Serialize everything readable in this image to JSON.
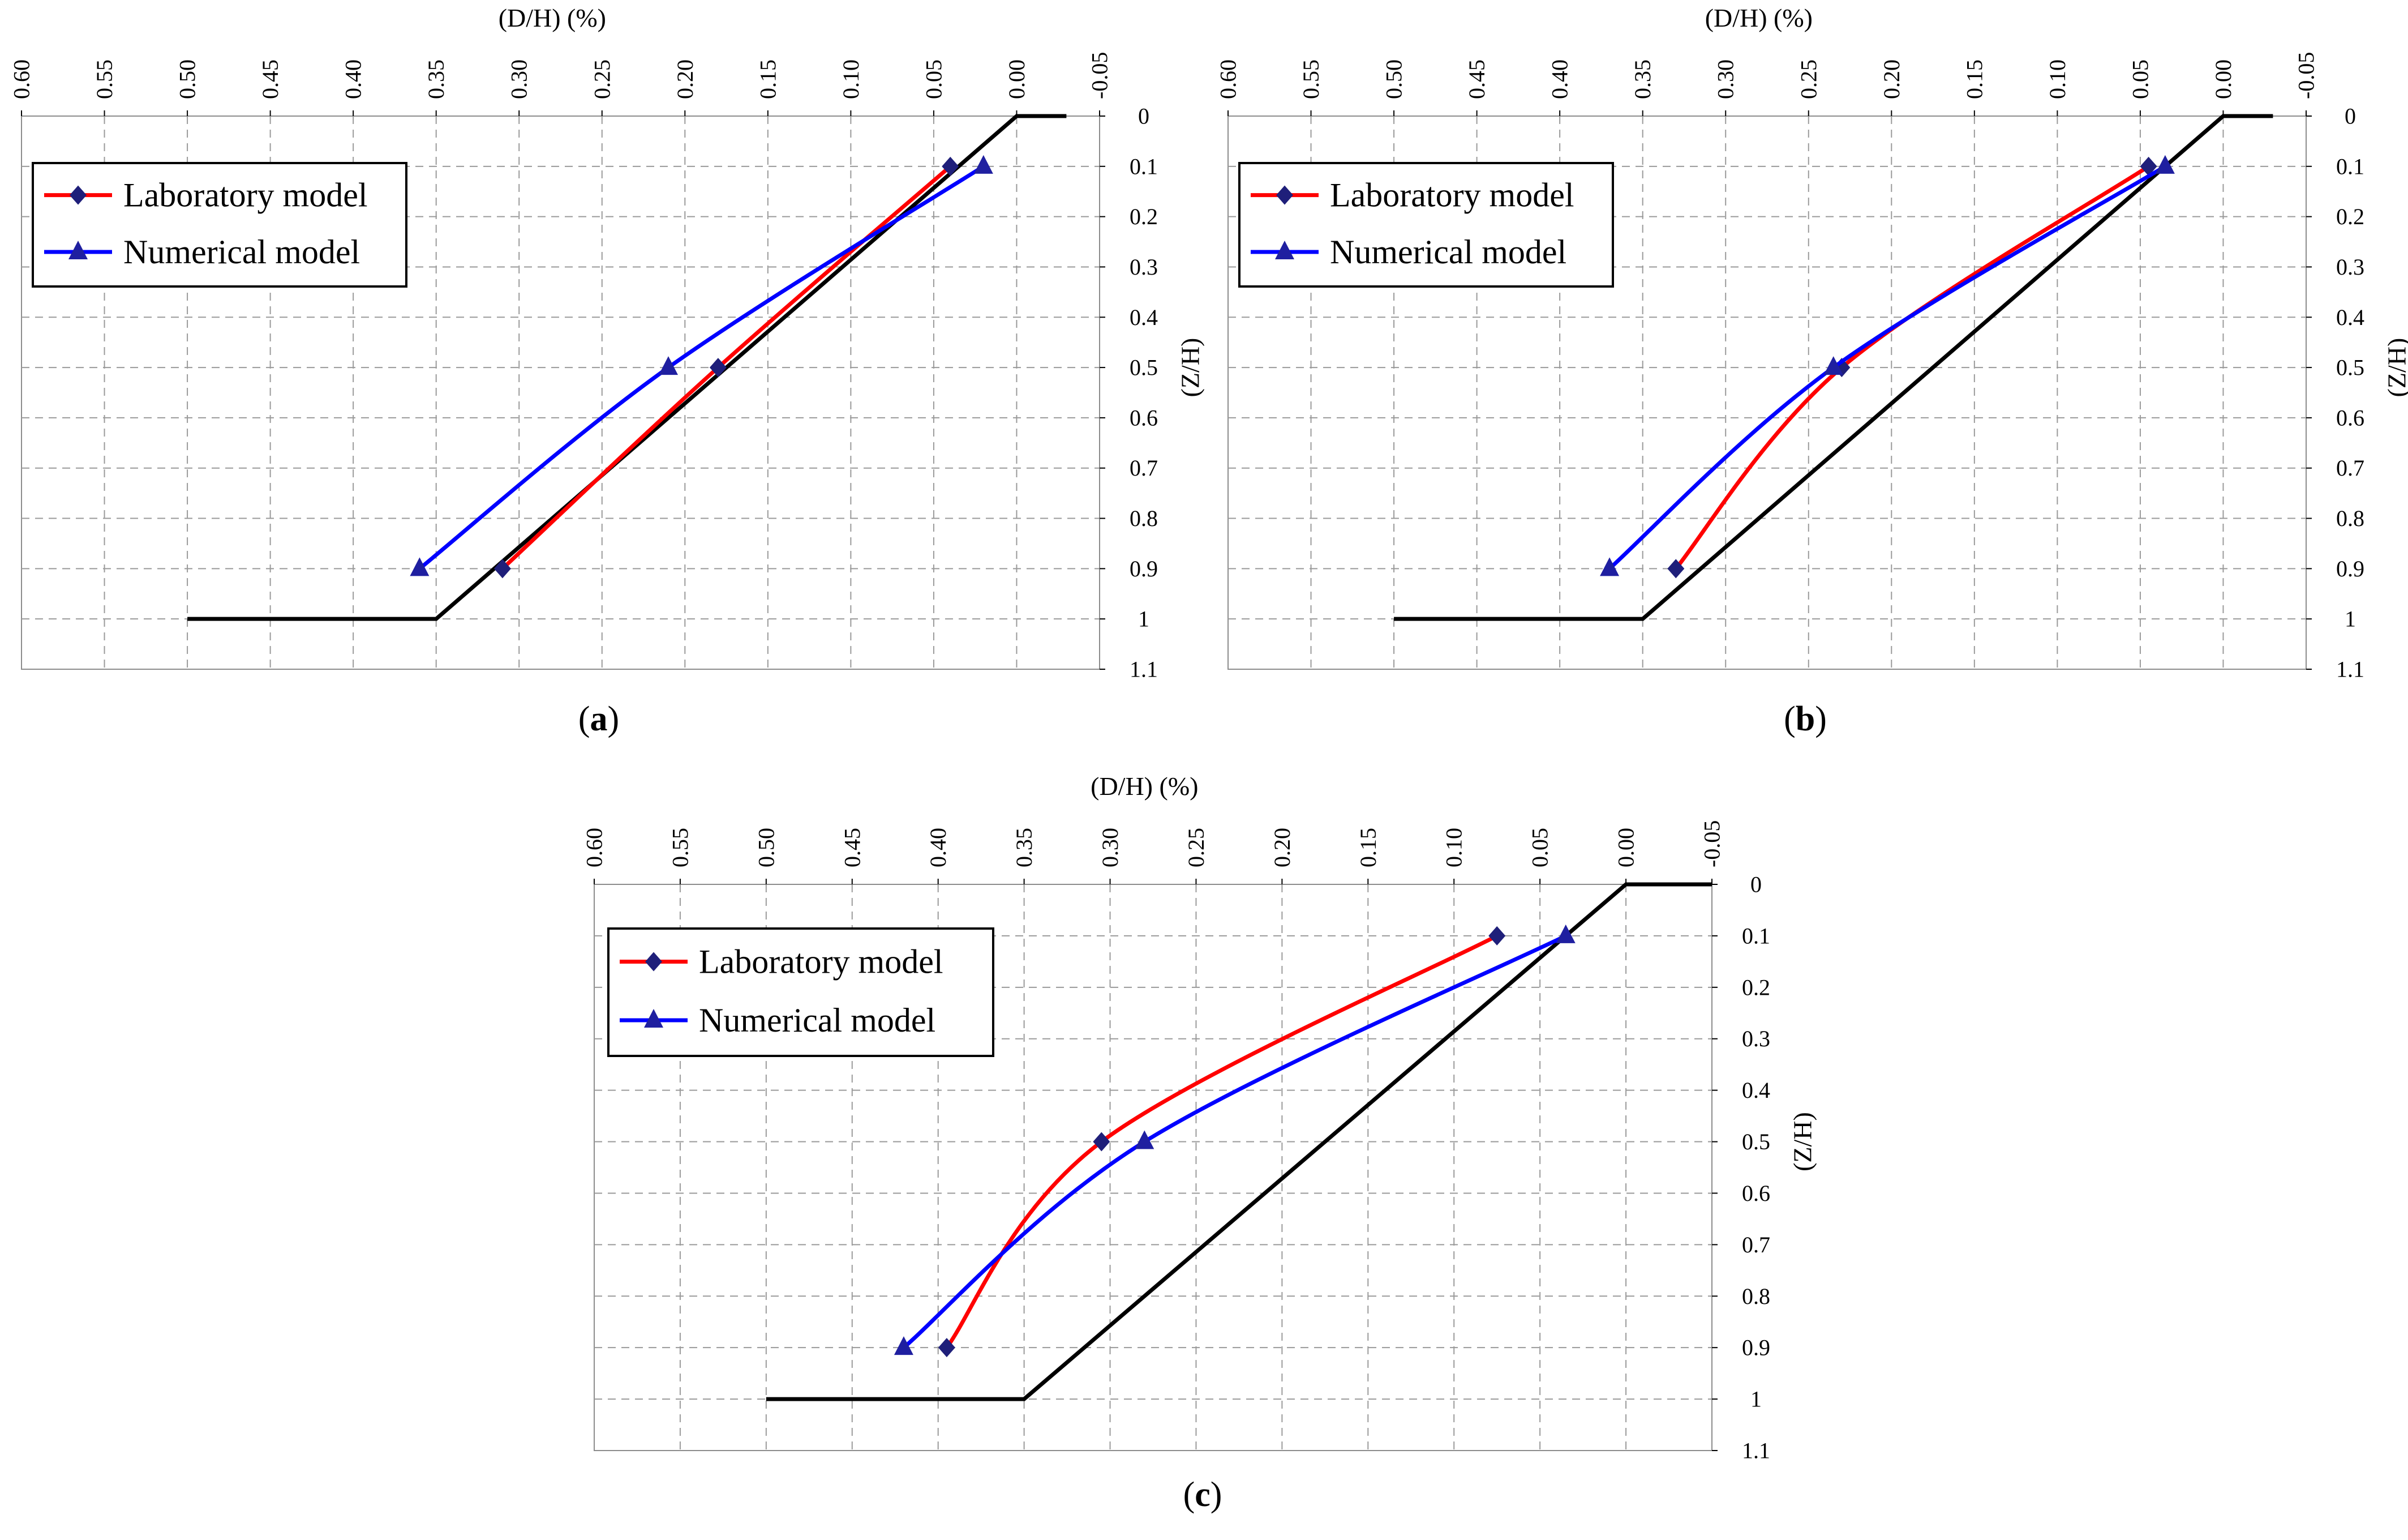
{
  "figure": {
    "x_axis_label": "(D/H) (%)",
    "y_axis_label": "(Z/H)",
    "x_ticks": [
      "0.60",
      "0.55",
      "0.50",
      "0.45",
      "0.40",
      "0.35",
      "0.30",
      "0.25",
      "0.20",
      "0.15",
      "0.10",
      "0.05",
      "0.00",
      "-0.05"
    ],
    "y_ticks": [
      "0",
      "0.1",
      "0.2",
      "0.3",
      "0.4",
      "0.5",
      "0.6",
      "0.7",
      "0.8",
      "0.9",
      "1",
      "1.1"
    ],
    "legend": {
      "laboratory": "Laboratory model",
      "numerical": "Numerical model"
    },
    "colors": {
      "laboratory": "#ff0000",
      "laboratory_marker": "#1f1f7a",
      "numerical": "#0000ff",
      "numerical_marker": "#1f1fa0",
      "slope": "#000000",
      "grid": "#9a9a9a"
    },
    "panel_labels": [
      "(a)",
      "(b)",
      "(c)"
    ]
  },
  "chart_data": [
    {
      "type": "line",
      "panel": "a",
      "xlabel": "(D/H) (%)",
      "ylabel": "(Z/H)",
      "xlim": [
        0.6,
        -0.05
      ],
      "ylim": [
        0,
        1.1
      ],
      "series": [
        {
          "name": "Slope profile",
          "x": [
            -0.03,
            0.0,
            0.35,
            0.5
          ],
          "y": [
            0,
            0,
            1,
            1
          ]
        },
        {
          "name": "Laboratory model",
          "x": [
            0.04,
            0.18,
            0.31
          ],
          "y": [
            0.1,
            0.5,
            0.9
          ]
        },
        {
          "name": "Numerical model",
          "x": [
            0.02,
            0.21,
            0.36
          ],
          "y": [
            0.1,
            0.5,
            0.9
          ]
        }
      ]
    },
    {
      "type": "line",
      "panel": "b",
      "xlabel": "(D/H) (%)",
      "ylabel": "(Z/H)",
      "xlim": [
        0.6,
        -0.05
      ],
      "ylim": [
        0,
        1.1
      ],
      "series": [
        {
          "name": "Slope profile",
          "x": [
            -0.03,
            0.0,
            0.35,
            0.5
          ],
          "y": [
            0,
            0,
            1,
            1
          ]
        },
        {
          "name": "Laboratory model",
          "x": [
            0.045,
            0.23,
            0.33
          ],
          "y": [
            0.1,
            0.5,
            0.9
          ]
        },
        {
          "name": "Numerical model",
          "x": [
            0.035,
            0.235,
            0.37
          ],
          "y": [
            0.1,
            0.5,
            0.9
          ]
        }
      ]
    },
    {
      "type": "line",
      "panel": "c",
      "xlabel": "(D/H) (%)",
      "ylabel": "(Z/H)",
      "xlim": [
        0.6,
        -0.05
      ],
      "ylim": [
        0,
        1.1
      ],
      "series": [
        {
          "name": "Slope profile",
          "x": [
            -0.05,
            0.0,
            0.35,
            0.5
          ],
          "y": [
            0,
            0,
            1,
            1
          ]
        },
        {
          "name": "Laboratory model",
          "x": [
            0.075,
            0.305,
            0.395
          ],
          "y": [
            0.1,
            0.5,
            0.9
          ]
        },
        {
          "name": "Numerical model",
          "x": [
            0.035,
            0.28,
            0.42
          ],
          "y": [
            0.1,
            0.5,
            0.9
          ]
        }
      ]
    }
  ]
}
